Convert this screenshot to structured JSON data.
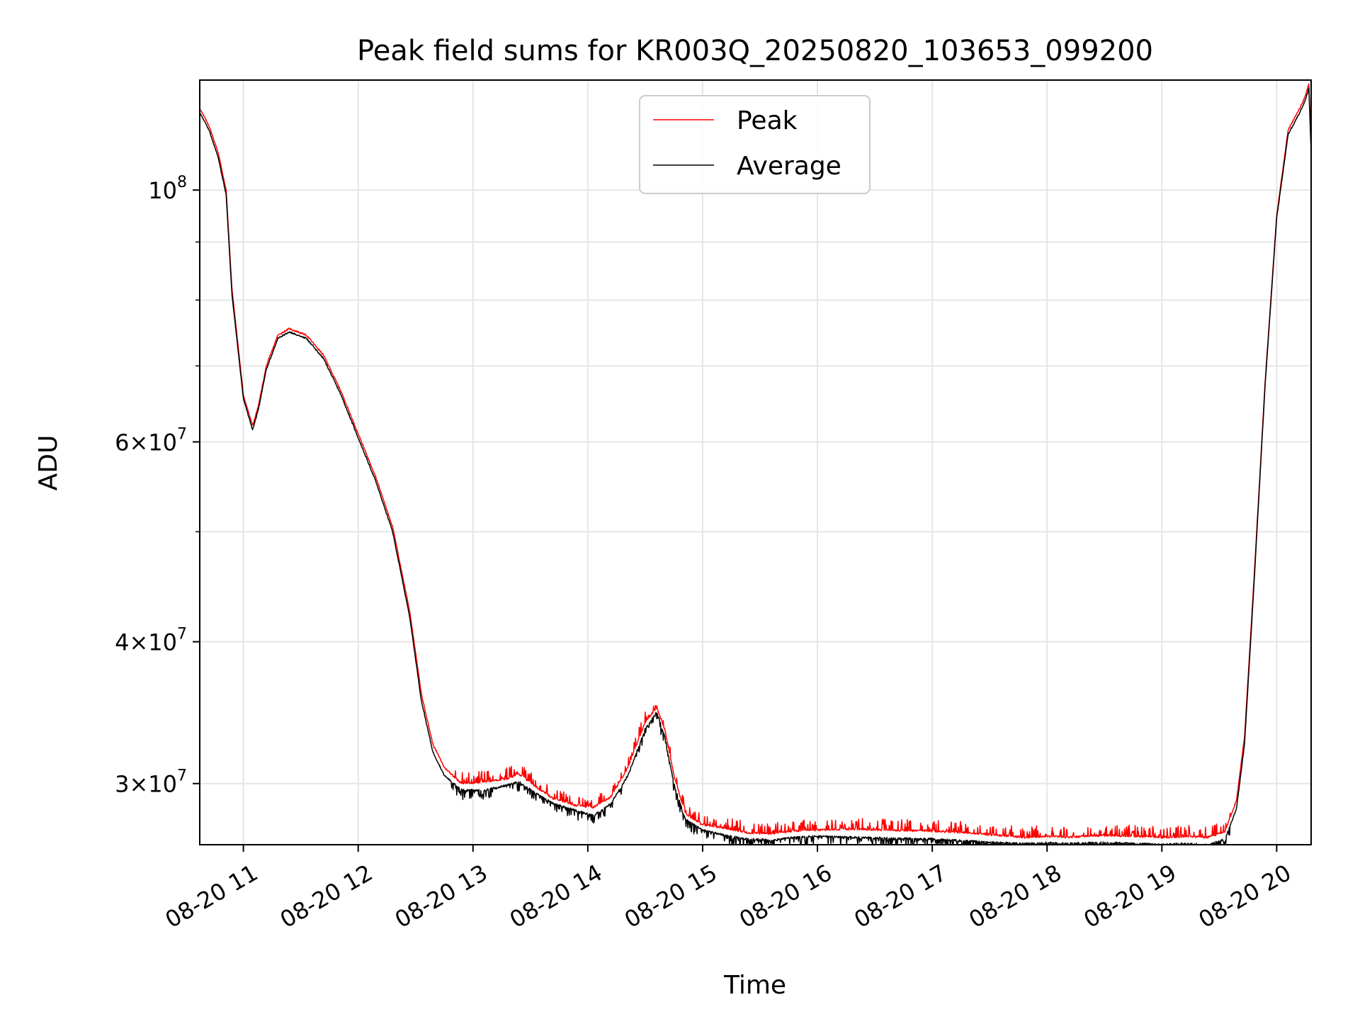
{
  "chart_data": {
    "type": "line",
    "title": "Peak field sums for KR003Q_20250820_103653_099200",
    "xlabel": "Time",
    "ylabel": "ADU",
    "x_axis": {
      "kind": "time",
      "range_hours": [
        10.62,
        20.3
      ],
      "ticks": [
        {
          "hour": 11,
          "label": "08-20 11"
        },
        {
          "hour": 12,
          "label": "08-20 12"
        },
        {
          "hour": 13,
          "label": "08-20 13"
        },
        {
          "hour": 14,
          "label": "08-20 14"
        },
        {
          "hour": 15,
          "label": "08-20 15"
        },
        {
          "hour": 16,
          "label": "08-20 16"
        },
        {
          "hour": 17,
          "label": "08-20 17"
        },
        {
          "hour": 18,
          "label": "08-20 18"
        },
        {
          "hour": 19,
          "label": "08-20 19"
        },
        {
          "hour": 20,
          "label": "08-20 20"
        }
      ]
    },
    "y_axis": {
      "scale": "log",
      "range": [
        26500000,
        125000000
      ],
      "major_ticks": [
        {
          "value": 30000000,
          "base": "3",
          "exp": "7"
        },
        {
          "value": 40000000,
          "base": "4",
          "exp": "7"
        },
        {
          "value": 60000000,
          "base": "6",
          "exp": "7"
        },
        {
          "value": 100000000,
          "base": "",
          "exp": "8"
        }
      ],
      "minor_ticks": [
        50000000,
        70000000,
        80000000,
        90000000
      ]
    },
    "grid": true,
    "legend": {
      "placement": "upper center",
      "entries": [
        "Peak",
        "Average"
      ]
    },
    "series": [
      {
        "name": "Peak",
        "color": "#ff0000",
        "noise_up": 0.022,
        "x": [
          10.62,
          10.7,
          10.78,
          10.85,
          10.9,
          11.0,
          11.08,
          11.13,
          11.2,
          11.3,
          11.4,
          11.55,
          11.7,
          11.85,
          12.0,
          12.15,
          12.3,
          12.45,
          12.55,
          12.65,
          12.75,
          12.9,
          13.1,
          13.3,
          13.4,
          13.55,
          13.7,
          13.9,
          14.05,
          14.2,
          14.35,
          14.5,
          14.6,
          14.67,
          14.75,
          14.85,
          15.0,
          15.2,
          15.4,
          15.6,
          15.8,
          16.0,
          16.3,
          16.6,
          17.0,
          17.3,
          17.6,
          17.8,
          18.0,
          18.2,
          18.4,
          18.6,
          18.8,
          19.0,
          19.2,
          19.4,
          19.55,
          19.65,
          19.72,
          19.8,
          19.9,
          20.0,
          20.1,
          20.2,
          20.25,
          20.28,
          20.3
        ],
        "y": [
          118000000,
          114000000,
          108000000,
          100000000,
          82000000,
          66000000,
          62000000,
          64500000,
          70000000,
          74500000,
          75500000,
          74500000,
          71500000,
          66500000,
          61000000,
          56000000,
          50500000,
          42500000,
          36000000,
          32500000,
          31000000,
          30000000,
          30100000,
          30300000,
          30600000,
          29800000,
          29100000,
          28700000,
          28600000,
          29200000,
          31000000,
          34000000,
          35000000,
          33500000,
          30500000,
          28200000,
          27600000,
          27400000,
          27150000,
          27100000,
          27250000,
          27300000,
          27350000,
          27300000,
          27250000,
          27150000,
          27000000,
          26900000,
          26950000,
          26900000,
          27000000,
          27000000,
          26950000,
          26900000,
          26950000,
          26900000,
          27200000,
          29000000,
          33000000,
          45000000,
          68000000,
          95000000,
          113000000,
          118000000,
          121000000,
          124000000,
          110000000
        ]
      },
      {
        "name": "Average",
        "color": "#000000",
        "noise_dn": 0.018,
        "x": [
          10.62,
          10.7,
          10.78,
          10.85,
          10.9,
          11.0,
          11.08,
          11.13,
          11.2,
          11.3,
          11.4,
          11.55,
          11.7,
          11.85,
          12.0,
          12.15,
          12.3,
          12.45,
          12.55,
          12.65,
          12.75,
          12.9,
          13.1,
          13.3,
          13.4,
          13.55,
          13.7,
          13.9,
          14.05,
          14.2,
          14.35,
          14.5,
          14.6,
          14.67,
          14.75,
          14.85,
          15.0,
          15.2,
          15.4,
          15.6,
          15.8,
          16.0,
          16.3,
          16.6,
          17.0,
          17.3,
          17.6,
          17.8,
          18.0,
          18.2,
          18.4,
          18.6,
          18.8,
          19.0,
          19.2,
          19.4,
          19.55,
          19.65,
          19.72,
          19.8,
          19.9,
          20.0,
          20.1,
          20.2,
          20.25,
          20.28,
          20.3
        ],
        "y": [
          117000000,
          113000000,
          107000000,
          99000000,
          81000000,
          65500000,
          61500000,
          64000000,
          69500000,
          74000000,
          75000000,
          74000000,
          71000000,
          66000000,
          60500000,
          55500000,
          50000000,
          42000000,
          35500000,
          32000000,
          30500000,
          29600000,
          29600000,
          29900000,
          30100000,
          29400000,
          28800000,
          28400000,
          28100000,
          28800000,
          30500000,
          33500000,
          34700000,
          33000000,
          30000000,
          27900000,
          27300000,
          27000000,
          26800000,
          26750000,
          26900000,
          26950000,
          26900000,
          26850000,
          26800000,
          26700000,
          26600000,
          26550000,
          26600000,
          26550000,
          26600000,
          26600000,
          26550000,
          26500000,
          26550000,
          26500000,
          26800000,
          28500000,
          32500000,
          44500000,
          67500000,
          94500000,
          112000000,
          117000000,
          120000000,
          123000000,
          108000000
        ]
      }
    ]
  }
}
